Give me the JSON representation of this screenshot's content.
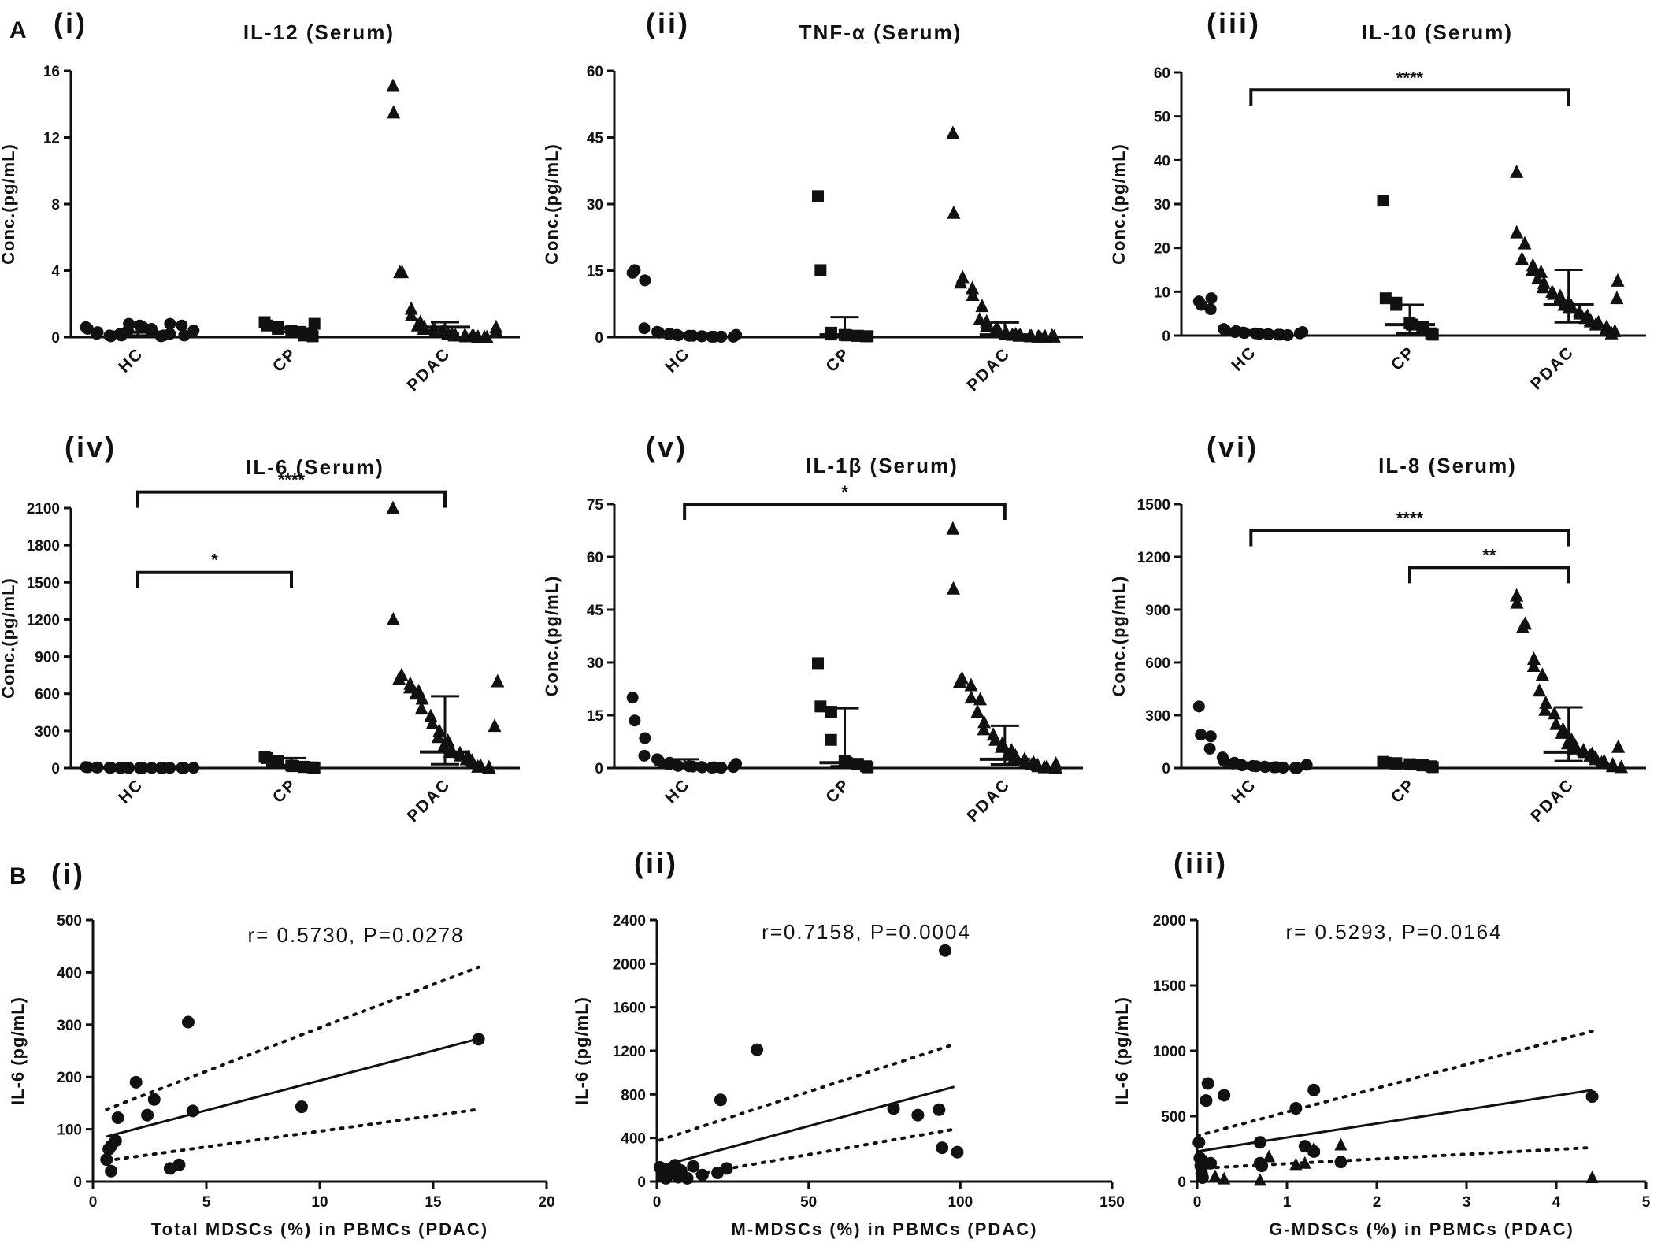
{
  "panel_labels": [
    "A",
    "B"
  ],
  "chart_data": [
    {
      "id": "A-i",
      "type": "scatter",
      "roman": "(i)",
      "title": "IL-12 (Serum)",
      "ylabel": "Conc.(pg/mL)",
      "ylim": [
        0,
        16
      ],
      "yticks": [
        0,
        4,
        8,
        12,
        16
      ],
      "yticklabels": [
        "0",
        "4",
        "8",
        "12",
        "16"
      ],
      "categories": [
        "HC",
        "CP",
        "PDAC"
      ],
      "markers": [
        "circle",
        "square",
        "triangle"
      ],
      "medians": [
        0.3,
        0.5,
        0.6
      ],
      "iqr": [
        [
          0.1,
          0.6
        ],
        [
          0.3,
          0.6
        ],
        [
          0.2,
          0.9
        ]
      ],
      "groups": [
        [
          0.6,
          0.5,
          0.3,
          0.2,
          0.1,
          0.05,
          0.1,
          0.2,
          0.4,
          0.8,
          0.7,
          0.6,
          0.5,
          0.3,
          0.1,
          0.05,
          0.2,
          0.8,
          0.7,
          0.1,
          0.4
        ],
        [
          0.9,
          0.7,
          0.6,
          0.5,
          0.4,
          0.3,
          0.2,
          0.1,
          0.05,
          0.8
        ],
        [
          15.1,
          13.5,
          3.9,
          3.9,
          1.7,
          1.3,
          0.9,
          0.7,
          0.6,
          0.5,
          0.5,
          0.4,
          0.3,
          0.3,
          0.2,
          0.2,
          0.1,
          0.1,
          0.1,
          0.05,
          0.05,
          0.05,
          0.0,
          0.0,
          0.0,
          0.0,
          0.4,
          0.6
        ]
      ],
      "brackets": []
    },
    {
      "id": "A-ii",
      "type": "scatter",
      "roman": "(ii)",
      "title": "TNF-α (Serum)",
      "ylabel": "Conc.(pg/mL)",
      "ylim": [
        0,
        60
      ],
      "yticks": [
        0,
        15,
        30,
        45,
        60
      ],
      "yticklabels": [
        "0",
        "15",
        "30",
        "45",
        "60"
      ],
      "categories": [
        "HC",
        "CP",
        "PDAC"
      ],
      "markers": [
        "circle",
        "square",
        "triangle"
      ],
      "medians": [
        0.2,
        0.5,
        0.5
      ],
      "iqr": [
        [
          0.1,
          0.8
        ],
        [
          0.2,
          4.5
        ],
        [
          0.2,
          3.3
        ]
      ],
      "groups": [
        [
          14.5,
          15.1,
          12.8,
          2.0,
          1.2,
          1.0,
          0.8,
          0.6,
          0.5,
          0.4,
          0.3,
          0.3,
          0.2,
          0.2,
          0.1,
          0.1,
          0.1,
          0.1,
          0.1,
          0.5
        ],
        [
          31.8,
          15.1,
          1.0,
          0.6,
          0.5,
          0.4,
          0.3,
          0.3,
          0.2,
          0.2
        ],
        [
          46.0,
          28.0,
          13.5,
          12.3,
          11.0,
          9.5,
          7.0,
          4.0,
          3.5,
          2.5,
          2.0,
          1.5,
          1.0,
          0.8,
          0.6,
          0.5,
          0.4,
          0.3,
          0.2,
          0.2,
          0.1,
          0.1,
          0.1,
          0.1,
          0.1,
          0.3
        ]
      ],
      "brackets": []
    },
    {
      "id": "A-iii",
      "type": "scatter",
      "roman": "(iii)",
      "title": "IL-10 (Serum)",
      "ylabel": "Conc.(pg/mL)",
      "ylim": [
        0,
        60
      ],
      "yticks": [
        0,
        10,
        20,
        30,
        40,
        50,
        60
      ],
      "yticklabels": [
        "0",
        "10",
        "20",
        "30",
        "40",
        "50",
        "60"
      ],
      "categories": [
        "HC",
        "CP",
        "PDAC"
      ],
      "markers": [
        "circle",
        "square",
        "triangle"
      ],
      "medians": [
        0.5,
        2.5,
        7.0
      ],
      "iqr": [
        [
          0.2,
          1.2
        ],
        [
          0.5,
          7.0
        ],
        [
          3.0,
          15.0
        ]
      ],
      "groups": [
        [
          7.8,
          7.0,
          8.5,
          6.0,
          1.5,
          1.2,
          1.0,
          0.8,
          0.7,
          0.6,
          0.5,
          0.4,
          0.3,
          0.3,
          0.2,
          0.2,
          0.1,
          0.1,
          0.5,
          0.8
        ],
        [
          30.8,
          8.5,
          7.5,
          7.0,
          2.8,
          2.5,
          2.0,
          1.2,
          0.5,
          0.2
        ],
        [
          37.3,
          23.5,
          21.0,
          17.5,
          16.0,
          15.0,
          14.5,
          13.0,
          12.0,
          11.0,
          10.0,
          9.5,
          9.0,
          8.0,
          7.5,
          7.0,
          6.8,
          6.5,
          5.5,
          5.0,
          4.5,
          4.0,
          3.5,
          3.2,
          3.0,
          2.5,
          2.0,
          1.5,
          1.0,
          0.5,
          12.5,
          8.5
        ]
      ],
      "brackets": [
        {
          "from": 0,
          "to": 2,
          "y": 56,
          "label": "****"
        }
      ]
    },
    {
      "id": "A-iv",
      "type": "scatter",
      "roman": "(iv)",
      "title": "IL-6 (Serum)",
      "ylabel": "Conc.(pg/mL)",
      "ylim": [
        0,
        2100
      ],
      "yticks": [
        0,
        300,
        600,
        900,
        1200,
        1500,
        1800,
        2100
      ],
      "yticklabels": [
        "0",
        "300",
        "600",
        "900",
        "1200",
        "1500",
        "1800",
        "2100"
      ],
      "categories": [
        "HC",
        "CP",
        "PDAC"
      ],
      "markers": [
        "circle",
        "square",
        "triangle"
      ],
      "medians": [
        5,
        20,
        130
      ],
      "iqr": [
        [
          2,
          8
        ],
        [
          10,
          80
        ],
        [
          30,
          580
        ]
      ],
      "groups": [
        [
          8,
          6,
          5,
          4,
          3,
          3,
          2,
          2,
          2,
          1,
          1,
          1,
          1,
          1,
          1,
          1,
          1,
          1,
          1,
          1,
          2
        ],
        [
          90,
          80,
          60,
          40,
          20,
          15,
          10,
          8,
          5,
          3
        ],
        [
          2100,
          1200,
          750,
          720,
          680,
          650,
          620,
          600,
          560,
          480,
          420,
          360,
          300,
          250,
          220,
          180,
          150,
          130,
          120,
          100,
          90,
          70,
          60,
          40,
          20,
          10,
          5,
          3,
          700,
          340
        ]
      ],
      "brackets": [
        {
          "from": 0,
          "to": 1,
          "y": 1580,
          "label": "*"
        },
        {
          "from": 0,
          "to": 2,
          "y": 2230,
          "label": "****"
        }
      ]
    },
    {
      "id": "A-v",
      "type": "scatter",
      "roman": "(v)",
      "title": "IL-1β (Serum)",
      "ylabel": "Conc.(pg/mL)",
      "ylim": [
        0,
        75
      ],
      "yticks": [
        0,
        15,
        30,
        45,
        60,
        75
      ],
      "yticklabels": [
        "0",
        "15",
        "30",
        "45",
        "60",
        "75"
      ],
      "categories": [
        "HC",
        "CP",
        "PDAC"
      ],
      "markers": [
        "circle",
        "square",
        "triangle"
      ],
      "medians": [
        0.5,
        1.5,
        2.5
      ],
      "iqr": [
        [
          0.2,
          2.5
        ],
        [
          0.5,
          17.0
        ],
        [
          1.0,
          12.0
        ]
      ],
      "groups": [
        [
          20.0,
          13.5,
          8.5,
          3.5,
          2.5,
          2.0,
          1.5,
          1.0,
          0.8,
          0.6,
          0.5,
          0.4,
          0.3,
          0.2,
          0.2,
          0.1,
          0.1,
          0.1,
          0.3,
          1.2
        ],
        [
          29.8,
          17.5,
          16.0,
          8.0,
          2.0,
          1.5,
          1.2,
          1.0,
          0.5,
          0.2
        ],
        [
          68.0,
          51.0,
          25.5,
          24.5,
          23.5,
          20.0,
          19.5,
          16.0,
          13.0,
          11.0,
          9.5,
          8.0,
          7.0,
          6.0,
          5.0,
          4.0,
          3.5,
          3.0,
          2.5,
          2.0,
          1.5,
          1.0,
          0.8,
          0.5,
          0.3,
          0.2,
          0.1,
          1.2
        ]
      ],
      "brackets": [
        {
          "from": 0,
          "to": 2,
          "y": 75,
          "label": "*"
        }
      ]
    },
    {
      "id": "A-vi",
      "type": "scatter",
      "roman": "(vi)",
      "title": "IL-8 (Serum)",
      "ylabel": "Conc.(pg/mL)",
      "ylim": [
        0,
        1500
      ],
      "yticks": [
        0,
        300,
        600,
        900,
        1200,
        1500
      ],
      "yticklabels": [
        "0",
        "300",
        "600",
        "900",
        "1200",
        "1500"
      ],
      "categories": [
        "HC",
        "CP",
        "PDAC"
      ],
      "markers": [
        "circle",
        "square",
        "triangle"
      ],
      "medians": [
        15,
        20,
        90
      ],
      "iqr": [
        [
          5,
          30
        ],
        [
          10,
          25
        ],
        [
          40,
          345
        ]
      ],
      "groups": [
        [
          350,
          190,
          180,
          110,
          60,
          40,
          30,
          25,
          20,
          15,
          12,
          10,
          8,
          6,
          5,
          4,
          3,
          2,
          1,
          1,
          18
        ],
        [
          35,
          30,
          28,
          25,
          22,
          20,
          18,
          15,
          10,
          5
        ],
        [
          980,
          940,
          820,
          800,
          620,
          580,
          530,
          440,
          370,
          330,
          310,
          250,
          220,
          200,
          160,
          140,
          130,
          110,
          100,
          90,
          80,
          70,
          60,
          50,
          40,
          30,
          20,
          10,
          5,
          120
        ]
      ],
      "brackets": [
        {
          "from": 0,
          "to": 2,
          "y": 1350,
          "label": "****"
        },
        {
          "from": 1,
          "to": 2,
          "y": 1140,
          "label": "**"
        }
      ]
    },
    {
      "id": "B-i",
      "type": "scatter",
      "roman": "(i)",
      "annotation": "r= 0.5730, P=0.0278",
      "xlabel": "Total MDSCs (%) in PBMCs (PDAC)",
      "ylabel": "IL-6 (pg/mL)",
      "xlim": [
        0,
        20
      ],
      "ylim": [
        0,
        500
      ],
      "xticks": [
        0,
        5,
        10,
        15,
        20
      ],
      "yticks": [
        0,
        100,
        200,
        300,
        400,
        500
      ],
      "xticklabels": [
        "0",
        "5",
        "10",
        "15",
        "20"
      ],
      "yticklabels": [
        "0",
        "100",
        "200",
        "300",
        "400",
        "500"
      ],
      "marker": "circle",
      "points": [
        [
          0.6,
          42
        ],
        [
          0.7,
          62
        ],
        [
          0.8,
          68
        ],
        [
          0.8,
          20
        ],
        [
          1.0,
          78
        ],
        [
          1.1,
          122
        ],
        [
          1.9,
          190
        ],
        [
          2.4,
          127
        ],
        [
          2.7,
          157
        ],
        [
          3.4,
          25
        ],
        [
          3.8,
          32
        ],
        [
          4.2,
          305
        ],
        [
          4.4,
          135
        ],
        [
          9.2,
          143
        ],
        [
          17.0,
          272
        ]
      ],
      "fit": [
        [
          0.6,
          86
        ],
        [
          17.0,
          273
        ]
      ],
      "ci_upper": [
        [
          0.6,
          138
        ],
        [
          17.0,
          410
        ]
      ],
      "ci_lower": [
        [
          0.6,
          40
        ],
        [
          17.0,
          138
        ]
      ]
    },
    {
      "id": "B-ii",
      "type": "scatter",
      "roman": "(ii)",
      "annotation": "r=0.7158, P=0.0004",
      "xlabel": "M-MDSCs (%) in PBMCs (PDAC)",
      "ylabel": "IL-6 (pg/mL)",
      "xlim": [
        0,
        150
      ],
      "ylim": [
        0,
        2400
      ],
      "xticks": [
        0,
        50,
        100,
        150
      ],
      "yticks": [
        0,
        400,
        800,
        1200,
        1600,
        2000,
        2400
      ],
      "xticklabels": [
        "0",
        "50",
        "100",
        "150"
      ],
      "yticklabels": [
        "0",
        "400",
        "800",
        "1200",
        "1600",
        "2000",
        "2400"
      ],
      "marker": "circle",
      "points": [
        [
          1,
          130
        ],
        [
          2,
          60
        ],
        [
          3,
          30
        ],
        [
          4,
          90
        ],
        [
          5,
          120
        ],
        [
          6,
          150
        ],
        [
          7,
          40
        ],
        [
          8,
          100
        ],
        [
          10,
          30
        ],
        [
          12,
          140
        ],
        [
          15,
          60
        ],
        [
          20,
          80
        ],
        [
          21,
          750
        ],
        [
          23,
          120
        ],
        [
          33,
          1210
        ],
        [
          78,
          670
        ],
        [
          86,
          610
        ],
        [
          93,
          660
        ],
        [
          94,
          310
        ],
        [
          95,
          2120
        ],
        [
          99,
          270
        ]
      ],
      "fit": [
        [
          1,
          140
        ],
        [
          98,
          870
        ]
      ],
      "ci_upper": [
        [
          1,
          380
        ],
        [
          98,
          1260
        ]
      ],
      "ci_lower": [
        [
          1,
          10
        ],
        [
          98,
          480
        ]
      ]
    },
    {
      "id": "B-iii",
      "type": "scatter",
      "roman": "(iii)",
      "annotation": "r= 0.5293, P=0.0164",
      "xlabel": "G-MDSCs (%) in PBMCs (PDAC)",
      "ylabel": "IL-6 (pg/mL)",
      "xlim": [
        0,
        5
      ],
      "ylim": [
        0,
        2000
      ],
      "xticks": [
        0,
        1,
        2,
        3,
        4,
        5
      ],
      "yticks": [
        0,
        500,
        1000,
        1500,
        2000
      ],
      "xticklabels": [
        "0",
        "1",
        "2",
        "3",
        "4",
        "5"
      ],
      "yticklabels": [
        "0",
        "500",
        "1000",
        "1500",
        "2000"
      ],
      "marker": "circle",
      "points": [
        [
          0.02,
          300
        ],
        [
          0.03,
          180
        ],
        [
          0.04,
          120
        ],
        [
          0.05,
          60
        ],
        [
          0.06,
          30
        ],
        [
          0.1,
          620
        ],
        [
          0.12,
          750
        ],
        [
          0.15,
          140
        ],
        [
          0.3,
          660
        ],
        [
          0.7,
          300
        ],
        [
          0.7,
          140
        ],
        [
          0.72,
          120
        ],
        [
          1.1,
          560
        ],
        [
          1.2,
          270
        ],
        [
          1.3,
          700
        ],
        [
          1.3,
          230
        ],
        [
          1.6,
          150
        ],
        [
          4.4,
          650
        ]
      ],
      "triangles": [
        [
          0.05,
          80
        ],
        [
          0.1,
          150
        ],
        [
          0.2,
          40
        ],
        [
          0.3,
          20
        ],
        [
          0.7,
          10
        ],
        [
          0.8,
          190
        ],
        [
          1.1,
          130
        ],
        [
          1.2,
          140
        ],
        [
          1.3,
          250
        ],
        [
          1.6,
          280
        ],
        [
          4.4,
          30
        ]
      ],
      "fit": [
        [
          0.0,
          230
        ],
        [
          4.4,
          700
        ]
      ],
      "ci_upper": [
        [
          0.0,
          350
        ],
        [
          4.4,
          1150
        ]
      ],
      "ci_lower": [
        [
          0.0,
          100
        ],
        [
          4.4,
          260
        ]
      ]
    }
  ]
}
